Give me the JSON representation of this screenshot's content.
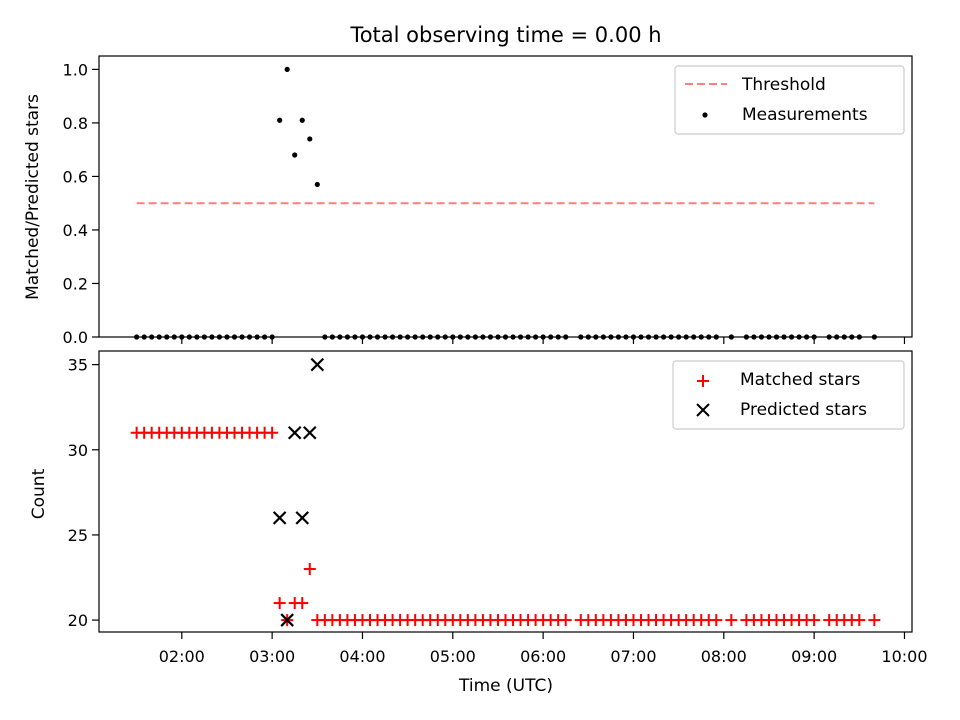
{
  "chart_data": [
    {
      "type": "scatter",
      "title": "Total observing time = 0.00 h",
      "xlabel": "",
      "ylabel": "Matched/Predicted stars",
      "ylim": [
        0,
        1.05
      ],
      "yticks": [
        "0.0",
        "0.2",
        "0.4",
        "0.6",
        "0.8",
        "1.0"
      ],
      "legend_placement": "top-right",
      "threshold": {
        "name": "Threshold",
        "value": 0.5,
        "x_start": "01:30",
        "x_end": "09:40",
        "color": "#ff7f7f"
      },
      "series": [
        {
          "name": "Measurements",
          "color": "#000000",
          "points": [
            [
              "01:30",
              0
            ],
            [
              "01:35",
              0
            ],
            [
              "01:40",
              0
            ],
            [
              "01:45",
              0
            ],
            [
              "01:50",
              0
            ],
            [
              "01:55",
              0
            ],
            [
              "02:00",
              0
            ],
            [
              "02:05",
              0
            ],
            [
              "02:10",
              0
            ],
            [
              "02:15",
              0
            ],
            [
              "02:20",
              0
            ],
            [
              "02:25",
              0
            ],
            [
              "02:30",
              0
            ],
            [
              "02:35",
              0
            ],
            [
              "02:40",
              0
            ],
            [
              "02:45",
              0
            ],
            [
              "02:50",
              0
            ],
            [
              "02:55",
              0
            ],
            [
              "03:00",
              0
            ],
            [
              "03:05",
              0.81
            ],
            [
              "03:10",
              1.0
            ],
            [
              "03:15",
              0.68
            ],
            [
              "03:20",
              0.81
            ],
            [
              "03:25",
              0.74
            ],
            [
              "03:30",
              0.57
            ],
            [
              "03:35",
              0
            ],
            [
              "03:40",
              0
            ],
            [
              "03:45",
              0
            ],
            [
              "03:50",
              0
            ],
            [
              "03:55",
              0
            ],
            [
              "04:00",
              0
            ],
            [
              "04:05",
              0
            ],
            [
              "04:10",
              0
            ],
            [
              "04:15",
              0
            ],
            [
              "04:20",
              0
            ],
            [
              "04:25",
              0
            ],
            [
              "04:30",
              0
            ],
            [
              "04:35",
              0
            ],
            [
              "04:40",
              0
            ],
            [
              "04:45",
              0
            ],
            [
              "04:50",
              0
            ],
            [
              "04:55",
              0
            ],
            [
              "05:00",
              0
            ],
            [
              "05:05",
              0
            ],
            [
              "05:10",
              0
            ],
            [
              "05:15",
              0
            ],
            [
              "05:20",
              0
            ],
            [
              "05:25",
              0
            ],
            [
              "05:30",
              0
            ],
            [
              "05:35",
              0
            ],
            [
              "05:40",
              0
            ],
            [
              "05:45",
              0
            ],
            [
              "05:50",
              0
            ],
            [
              "05:55",
              0
            ],
            [
              "06:00",
              0
            ],
            [
              "06:05",
              0
            ],
            [
              "06:10",
              0
            ],
            [
              "06:15",
              0
            ],
            [
              "06:25",
              0
            ],
            [
              "06:30",
              0
            ],
            [
              "06:35",
              0
            ],
            [
              "06:40",
              0
            ],
            [
              "06:45",
              0
            ],
            [
              "06:50",
              0
            ],
            [
              "06:55",
              0
            ],
            [
              "07:00",
              0
            ],
            [
              "07:05",
              0
            ],
            [
              "07:10",
              0
            ],
            [
              "07:15",
              0
            ],
            [
              "07:20",
              0
            ],
            [
              "07:25",
              0
            ],
            [
              "07:30",
              0
            ],
            [
              "07:35",
              0
            ],
            [
              "07:40",
              0
            ],
            [
              "07:45",
              0
            ],
            [
              "07:50",
              0
            ],
            [
              "07:55",
              0
            ],
            [
              "08:05",
              0
            ],
            [
              "08:15",
              0
            ],
            [
              "08:20",
              0
            ],
            [
              "08:25",
              0
            ],
            [
              "08:30",
              0
            ],
            [
              "08:35",
              0
            ],
            [
              "08:40",
              0
            ],
            [
              "08:45",
              0
            ],
            [
              "08:50",
              0
            ],
            [
              "08:55",
              0
            ],
            [
              "09:00",
              0
            ],
            [
              "09:10",
              0
            ],
            [
              "09:15",
              0
            ],
            [
              "09:20",
              0
            ],
            [
              "09:25",
              0
            ],
            [
              "09:30",
              0
            ],
            [
              "09:40",
              0
            ]
          ]
        }
      ]
    },
    {
      "type": "scatter",
      "title": "",
      "xlabel": "Time (UTC)",
      "ylabel": "Count",
      "ylim": [
        19.3,
        35.8
      ],
      "yticks": [
        "20",
        "25",
        "30",
        "35"
      ],
      "xlim": [
        "01:05",
        "10:05"
      ],
      "xticks": [
        "02:00",
        "03:00",
        "04:00",
        "05:00",
        "06:00",
        "07:00",
        "08:00",
        "09:00",
        "10:00"
      ],
      "legend_placement": "top-right",
      "series": [
        {
          "name": "Matched stars",
          "color": "#ff0000",
          "marker": "plus",
          "points": [
            [
              "01:30",
              31
            ],
            [
              "01:35",
              31
            ],
            [
              "01:40",
              31
            ],
            [
              "01:45",
              31
            ],
            [
              "01:50",
              31
            ],
            [
              "01:55",
              31
            ],
            [
              "02:00",
              31
            ],
            [
              "02:05",
              31
            ],
            [
              "02:10",
              31
            ],
            [
              "02:15",
              31
            ],
            [
              "02:20",
              31
            ],
            [
              "02:25",
              31
            ],
            [
              "02:30",
              31
            ],
            [
              "02:35",
              31
            ],
            [
              "02:40",
              31
            ],
            [
              "02:45",
              31
            ],
            [
              "02:50",
              31
            ],
            [
              "02:55",
              31
            ],
            [
              "03:00",
              31
            ],
            [
              "03:05",
              21
            ],
            [
              "03:10",
              20
            ],
            [
              "03:15",
              21
            ],
            [
              "03:20",
              21
            ],
            [
              "03:25",
              23
            ],
            [
              "03:30",
              20
            ],
            [
              "03:35",
              20
            ],
            [
              "03:40",
              20
            ],
            [
              "03:45",
              20
            ],
            [
              "03:50",
              20
            ],
            [
              "03:55",
              20
            ],
            [
              "04:00",
              20
            ],
            [
              "04:05",
              20
            ],
            [
              "04:10",
              20
            ],
            [
              "04:15",
              20
            ],
            [
              "04:20",
              20
            ],
            [
              "04:25",
              20
            ],
            [
              "04:30",
              20
            ],
            [
              "04:35",
              20
            ],
            [
              "04:40",
              20
            ],
            [
              "04:45",
              20
            ],
            [
              "04:50",
              20
            ],
            [
              "04:55",
              20
            ],
            [
              "05:00",
              20
            ],
            [
              "05:05",
              20
            ],
            [
              "05:10",
              20
            ],
            [
              "05:15",
              20
            ],
            [
              "05:20",
              20
            ],
            [
              "05:25",
              20
            ],
            [
              "05:30",
              20
            ],
            [
              "05:35",
              20
            ],
            [
              "05:40",
              20
            ],
            [
              "05:45",
              20
            ],
            [
              "05:50",
              20
            ],
            [
              "05:55",
              20
            ],
            [
              "06:00",
              20
            ],
            [
              "06:05",
              20
            ],
            [
              "06:10",
              20
            ],
            [
              "06:15",
              20
            ],
            [
              "06:25",
              20
            ],
            [
              "06:30",
              20
            ],
            [
              "06:35",
              20
            ],
            [
              "06:40",
              20
            ],
            [
              "06:45",
              20
            ],
            [
              "06:50",
              20
            ],
            [
              "06:55",
              20
            ],
            [
              "07:00",
              20
            ],
            [
              "07:05",
              20
            ],
            [
              "07:10",
              20
            ],
            [
              "07:15",
              20
            ],
            [
              "07:20",
              20
            ],
            [
              "07:25",
              20
            ],
            [
              "07:30",
              20
            ],
            [
              "07:35",
              20
            ],
            [
              "07:40",
              20
            ],
            [
              "07:45",
              20
            ],
            [
              "07:50",
              20
            ],
            [
              "07:55",
              20
            ],
            [
              "08:05",
              20
            ],
            [
              "08:15",
              20
            ],
            [
              "08:20",
              20
            ],
            [
              "08:25",
              20
            ],
            [
              "08:30",
              20
            ],
            [
              "08:35",
              20
            ],
            [
              "08:40",
              20
            ],
            [
              "08:45",
              20
            ],
            [
              "08:50",
              20
            ],
            [
              "08:55",
              20
            ],
            [
              "09:00",
              20
            ],
            [
              "09:10",
              20
            ],
            [
              "09:15",
              20
            ],
            [
              "09:20",
              20
            ],
            [
              "09:25",
              20
            ],
            [
              "09:30",
              20
            ],
            [
              "09:40",
              20
            ]
          ]
        },
        {
          "name": "Predicted stars",
          "color": "#000000",
          "marker": "x",
          "points": [
            [
              "03:05",
              26
            ],
            [
              "03:10",
              20
            ],
            [
              "03:15",
              31
            ],
            [
              "03:20",
              26
            ],
            [
              "03:25",
              31
            ],
            [
              "03:30",
              35
            ]
          ]
        }
      ]
    }
  ]
}
